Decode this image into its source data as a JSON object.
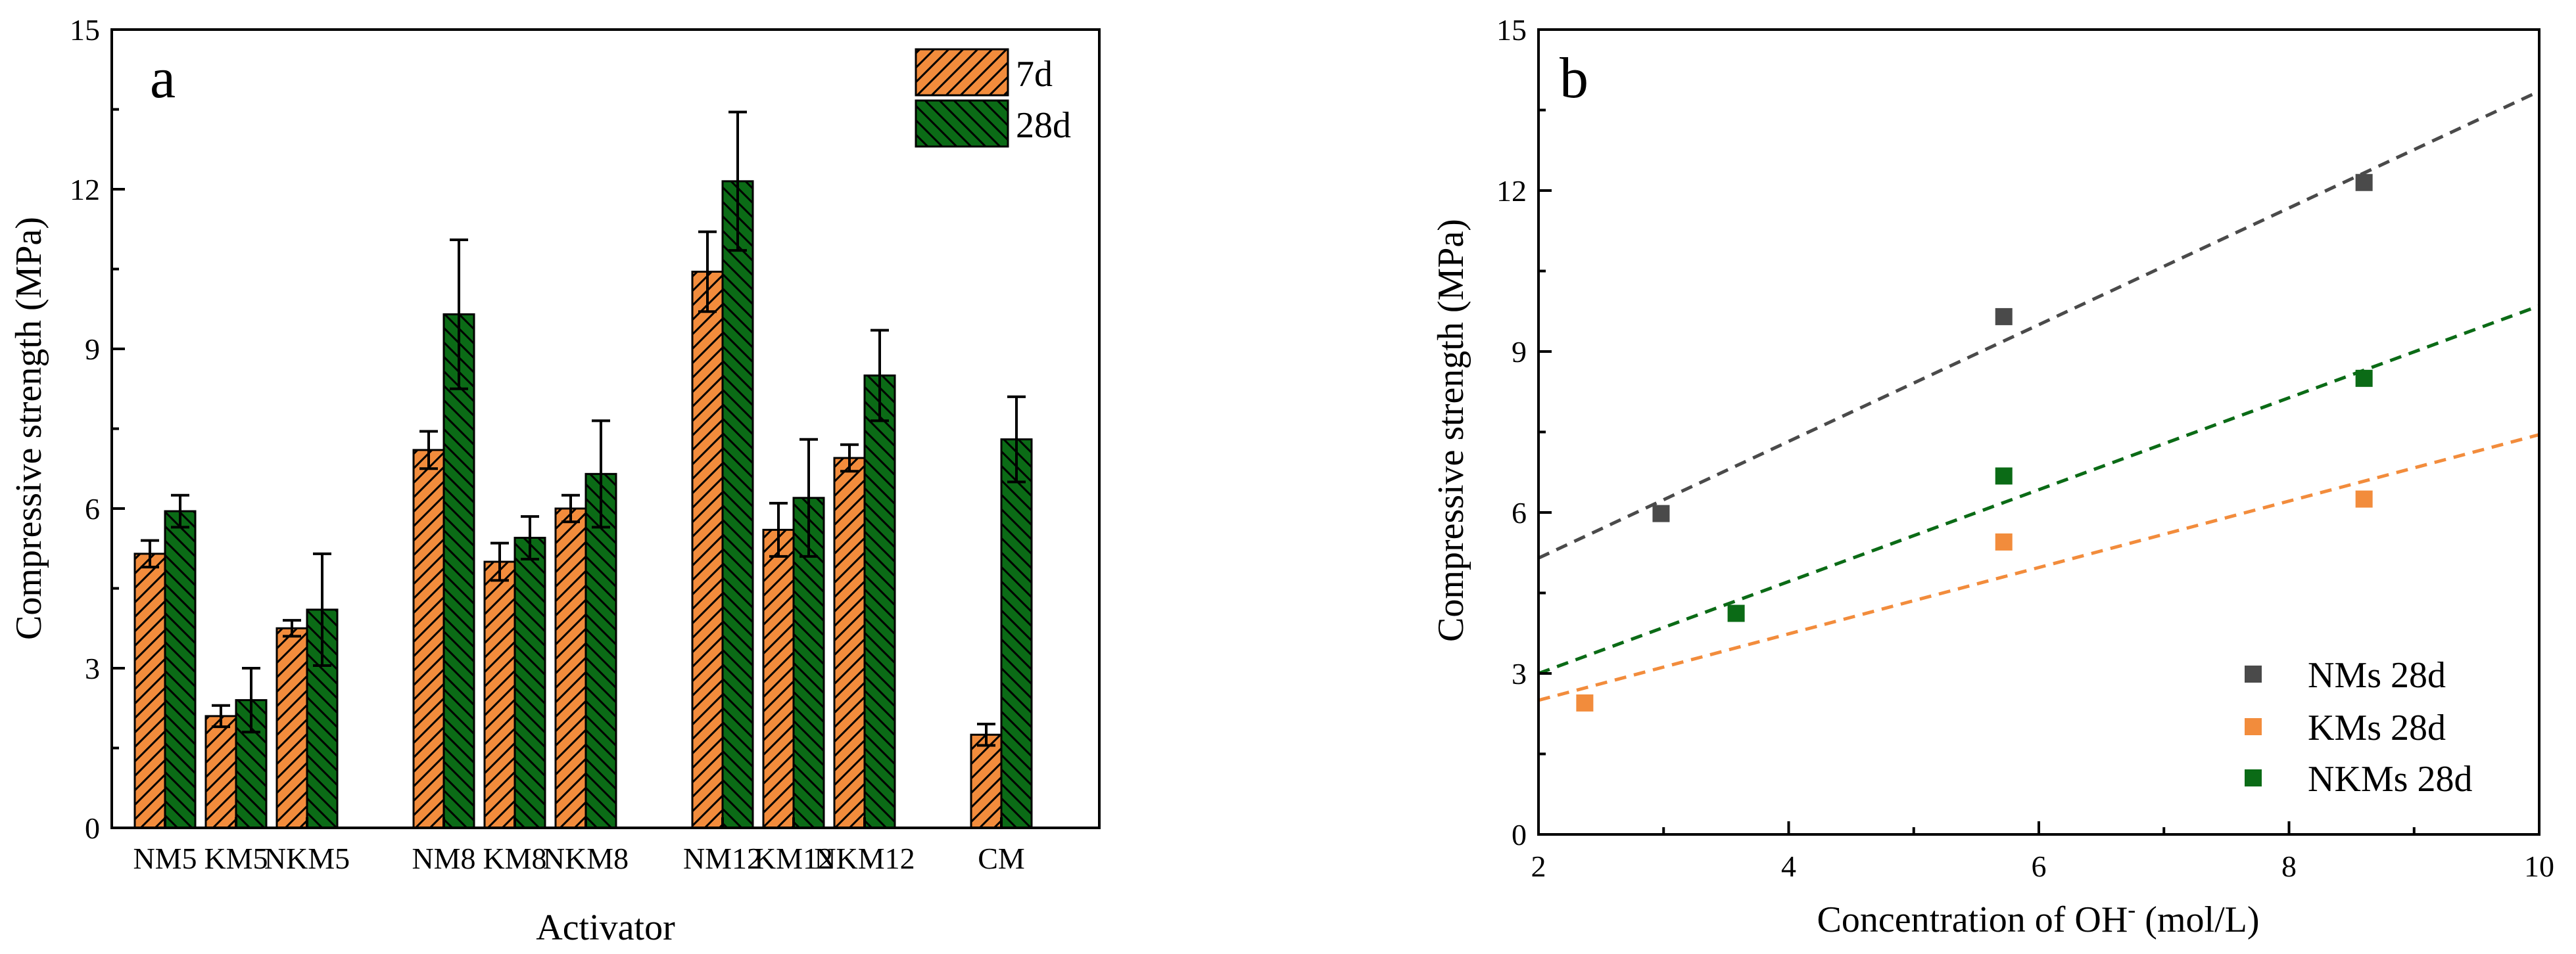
{
  "chart_data": [
    {
      "type": "bar",
      "panel_label": "a",
      "xlabel": "Activator",
      "ylabel": "Compressive strength (MPa)",
      "ylim": [
        0,
        15
      ],
      "yticks": [
        "0",
        "3",
        "6",
        "9",
        "12",
        "15"
      ],
      "categories": [
        "NM5",
        "KM5",
        "NKM5",
        "NM8",
        "KM8",
        "NKM8",
        "NM12",
        "KM12",
        "NKM12",
        "CM"
      ],
      "groups": [
        [
          "NM5",
          "KM5",
          "NKM5"
        ],
        [
          "NM8",
          "KM8",
          "NKM8"
        ],
        [
          "NM12",
          "KM12",
          "NKM12"
        ],
        [
          "CM"
        ]
      ],
      "series": [
        {
          "name": "7d",
          "color": "#F28C3C",
          "hatch": "diagonal-up",
          "values": [
            5.15,
            2.1,
            3.75,
            7.1,
            5.0,
            6.0,
            10.45,
            5.6,
            6.95,
            1.75
          ],
          "errors": [
            0.25,
            0.2,
            0.15,
            0.35,
            0.35,
            0.25,
            0.75,
            0.5,
            0.25,
            0.2
          ]
        },
        {
          "name": "28d",
          "color": "#0B6B16",
          "hatch": "diagonal-down",
          "values": [
            5.95,
            2.4,
            4.1,
            9.65,
            5.45,
            6.65,
            12.15,
            6.2,
            8.5,
            7.3
          ],
          "errors": [
            0.3,
            0.6,
            1.05,
            1.4,
            0.4,
            1.0,
            1.3,
            1.1,
            0.85,
            0.8
          ]
        }
      ],
      "legend_position": "top-right"
    },
    {
      "type": "scatter",
      "panel_label": "b",
      "xlabel": "Concentration of OH",
      "xlabel_sup": "-",
      "xlabel_unit": " (mol/L)",
      "ylabel": "Compressive strength (MPa)",
      "xlim": [
        2,
        10
      ],
      "ylim": [
        0,
        15
      ],
      "xticks": [
        "2",
        "4",
        "6",
        "8",
        "10"
      ],
      "yticks": [
        "0",
        "3",
        "6",
        "9",
        "12",
        "15"
      ],
      "series": [
        {
          "name": "NMs 28d",
          "color": "#4A4A4A",
          "points": [
            [
              2.98,
              5.98
            ],
            [
              5.72,
              9.65
            ],
            [
              8.6,
              12.15
            ]
          ],
          "trend": {
            "x0": 2,
            "y0": 5.15,
            "x1": 10,
            "y1": 13.85
          }
        },
        {
          "name": "KMs 28d",
          "color": "#F28C3C",
          "points": [
            [
              2.37,
              2.45
            ],
            [
              5.72,
              5.45
            ],
            [
              8.6,
              6.25
            ]
          ],
          "trend": {
            "x0": 2,
            "y0": 2.5,
            "x1": 10,
            "y1": 7.45
          }
        },
        {
          "name": "NKMs 28d",
          "color": "#0B6B16",
          "points": [
            [
              3.58,
              4.12
            ],
            [
              5.72,
              6.68
            ],
            [
              8.6,
              8.5
            ]
          ],
          "trend": {
            "x0": 2,
            "y0": 3.0,
            "x1": 10,
            "y1": 9.85
          }
        }
      ],
      "legend_position": "bottom-right"
    }
  ]
}
